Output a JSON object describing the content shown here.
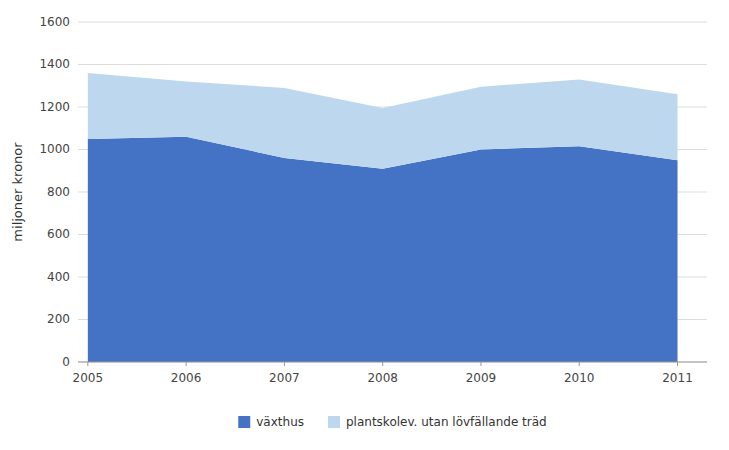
{
  "chart_data": {
    "type": "area",
    "stacked": true,
    "x": [
      2005,
      2006,
      2007,
      2008,
      2009,
      2010,
      2011
    ],
    "series": [
      {
        "name": "växthus",
        "color": "#4472C4",
        "values": [
          1050,
          1060,
          960,
          910,
          1000,
          1015,
          950
        ]
      },
      {
        "name": "plantskolev. utan lövfällande träd",
        "color": "#BDD7EE",
        "values": [
          310,
          260,
          330,
          285,
          295,
          315,
          310
        ]
      }
    ],
    "y_label": "miljoner kronor",
    "xlim": [
      2004.9,
      2011.3
    ],
    "xticks": [
      2005,
      2006,
      2007,
      2008,
      2009,
      2010,
      2011
    ],
    "ylim": [
      0,
      1600
    ],
    "yticks": [
      0,
      200,
      400,
      600,
      800,
      1000,
      1200,
      1400,
      1600
    ],
    "grid": true,
    "legend": "bottom"
  }
}
